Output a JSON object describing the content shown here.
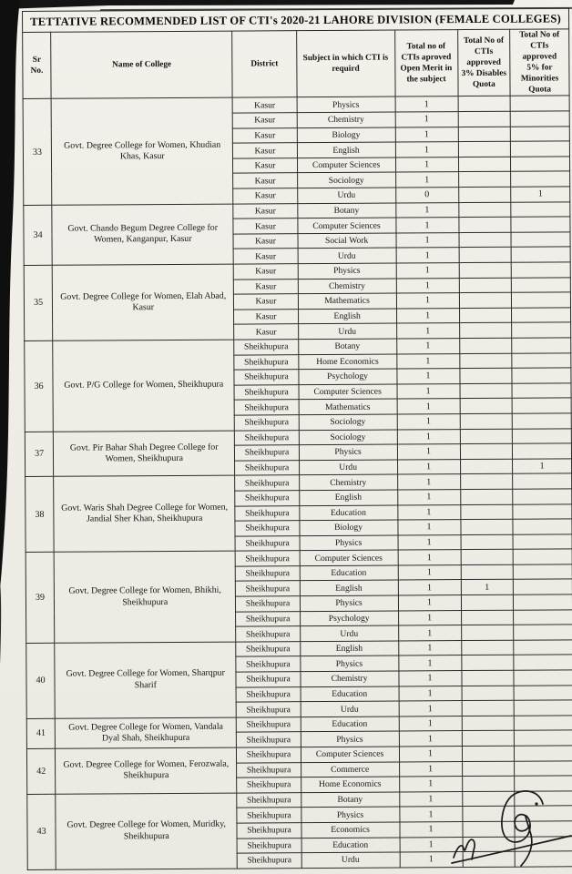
{
  "title": "TETTATIVE RECOMMENDED LIST OF CTI's 2020-21  LAHORE DIVISION (FEMALE COLLEGES)",
  "columns": [
    "Sr\nNo.",
    "Name of College",
    "District",
    "Subject in which CTI is\nrequird",
    "Total no of\nCTIs aproved\nOpen Merit in\nthe subject",
    "Total No of\nCTIs\napproved\n3% Disables\nQuota",
    "Total No of\nCTIs approved\n5% for\nMinorities\nQuota"
  ],
  "colleges": [
    {
      "sr": "33",
      "name": "Govt. Degree College for Women, Khudian Khas, Kasur",
      "rows": [
        [
          "Kasur",
          "Physics",
          "1",
          "",
          ""
        ],
        [
          "Kasur",
          "Chemistry",
          "1",
          "",
          ""
        ],
        [
          "Kasur",
          "Biology",
          "1",
          "",
          ""
        ],
        [
          "Kasur",
          "English",
          "1",
          "",
          ""
        ],
        [
          "Kasur",
          "Computer Sciences",
          "1",
          "",
          ""
        ],
        [
          "Kasur",
          "Sociology",
          "1",
          "",
          ""
        ],
        [
          "Kasur",
          "Urdu",
          "0",
          "",
          "1"
        ]
      ]
    },
    {
      "sr": "34",
      "name": "Govt. Chando Begum Degree College for Women, Kanganpur, Kasur",
      "rows": [
        [
          "Kasur",
          "Botany",
          "1",
          "",
          ""
        ],
        [
          "Kasur",
          "Computer Sciences",
          "1",
          "",
          ""
        ],
        [
          "Kasur",
          "Social Work",
          "1",
          "",
          ""
        ],
        [
          "Kasur",
          "Urdu",
          "1",
          "",
          ""
        ]
      ]
    },
    {
      "sr": "35",
      "name": "Govt. Degree College for Women, Elah Abad, Kasur",
      "rows": [
        [
          "Kasur",
          "Physics",
          "1",
          "",
          ""
        ],
        [
          "Kasur",
          "Chemistry",
          "1",
          "",
          ""
        ],
        [
          "Kasur",
          "Mathematics",
          "1",
          "",
          ""
        ],
        [
          "Kasur",
          "English",
          "1",
          "",
          ""
        ],
        [
          "Kasur",
          "Urdu",
          "1",
          "",
          ""
        ]
      ]
    },
    {
      "sr": "36",
      "name": "Govt. P/G College for Women, Sheikhupura",
      "rows": [
        [
          "Sheikhupura",
          "Botany",
          "1",
          "",
          ""
        ],
        [
          "Sheikhupura",
          "Home Economics",
          "1",
          "",
          ""
        ],
        [
          "Sheikhupura",
          "Psychology",
          "1",
          "",
          ""
        ],
        [
          "Sheikhupura",
          "Computer Sciences",
          "1",
          "",
          ""
        ],
        [
          "Sheikhupura",
          "Mathematics",
          "1",
          "",
          ""
        ],
        [
          "Sheikhupura",
          "Sociology",
          "1",
          "",
          ""
        ]
      ]
    },
    {
      "sr": "37",
      "name": "Govt. Pir Bahar Shah Degree College for Women, Sheikhupura",
      "rows": [
        [
          "Sheikhupura",
          "Sociology",
          "1",
          "",
          ""
        ],
        [
          "Sheikhupura",
          "Physics",
          "1",
          "",
          ""
        ],
        [
          "Sheikhupura",
          "Urdu",
          "1",
          "",
          "1"
        ]
      ]
    },
    {
      "sr": "38",
      "name": "Govt. Waris Shah Degree College for Women, Jandial Sher Khan, Sheikhupura",
      "rows": [
        [
          "Sheikhupura",
          "Chemistry",
          "1",
          "",
          ""
        ],
        [
          "Sheikhupura",
          "English",
          "1",
          "",
          ""
        ],
        [
          "Sheikhupura",
          "Education",
          "1",
          "",
          ""
        ],
        [
          "Sheikhupura",
          "Biology",
          "1",
          "",
          ""
        ],
        [
          "Sheikhupura",
          "Physics",
          "1",
          "",
          ""
        ]
      ]
    },
    {
      "sr": "39",
      "name": "Govt. Degree College for Women, Bhikhi, Sheikhupura",
      "rows": [
        [
          "Sheikhupura",
          "Computer Sciences",
          "1",
          "",
          ""
        ],
        [
          "Sheikhupura",
          "Education",
          "1",
          "",
          ""
        ],
        [
          "Sheikhupura",
          "English",
          "1",
          "1",
          ""
        ],
        [
          "Sheikhupura",
          "Physics",
          "1",
          "",
          ""
        ],
        [
          "Sheikhupura",
          "Psychology",
          "1",
          "",
          ""
        ],
        [
          "Sheikhupura",
          "Urdu",
          "1",
          "",
          ""
        ]
      ]
    },
    {
      "sr": "40",
      "name": "Govt. Degree College for Women, Sharqpur Sharif",
      "rows": [
        [
          "Sheikhupura",
          "English",
          "1",
          "",
          ""
        ],
        [
          "Sheikhupura",
          "Physics",
          "1",
          "",
          ""
        ],
        [
          "Sheikhupura",
          "Chemistry",
          "1",
          "",
          ""
        ],
        [
          "Sheikhupura",
          "Education",
          "1",
          "",
          ""
        ],
        [
          "Sheikhupura",
          "Urdu",
          "1",
          "",
          ""
        ]
      ]
    },
    {
      "sr": "41",
      "name": "Govt. Degree College for Women, Vandala Dyal Shah, Sheikhupura",
      "rows": [
        [
          "Sheikhupura",
          "Education",
          "1",
          "",
          ""
        ],
        [
          "Sheikhupura",
          "Physics",
          "1",
          "",
          ""
        ]
      ]
    },
    {
      "sr": "42",
      "name": "Govt. Degree College for Women, Ferozwala, Sheikhupura",
      "rows": [
        [
          "Sheikhupura",
          "Computer Sciences",
          "1",
          "",
          ""
        ],
        [
          "Sheikhupura",
          "Commerce",
          "1",
          "",
          ""
        ],
        [
          "Sheikhupura",
          "Home Economics",
          "1",
          "",
          ""
        ]
      ]
    },
    {
      "sr": "43",
      "name": "Govt. Degree College for Women, Muridky, Sheikhupura",
      "rows": [
        [
          "Sheikhupura",
          "Botany",
          "1",
          "",
          ""
        ],
        [
          "Sheikhupura",
          "Physics",
          "1",
          "",
          ""
        ],
        [
          "Sheikhupura",
          "Economics",
          "1",
          "",
          ""
        ],
        [
          "Sheikhupura",
          "Education",
          "1",
          "",
          ""
        ],
        [
          "Sheikhupura",
          "Urdu",
          "1",
          "",
          ""
        ]
      ]
    }
  ],
  "colors": {
    "paper": "#f1efe9",
    "ink": "#161616",
    "grid": "#2b2b2b"
  }
}
